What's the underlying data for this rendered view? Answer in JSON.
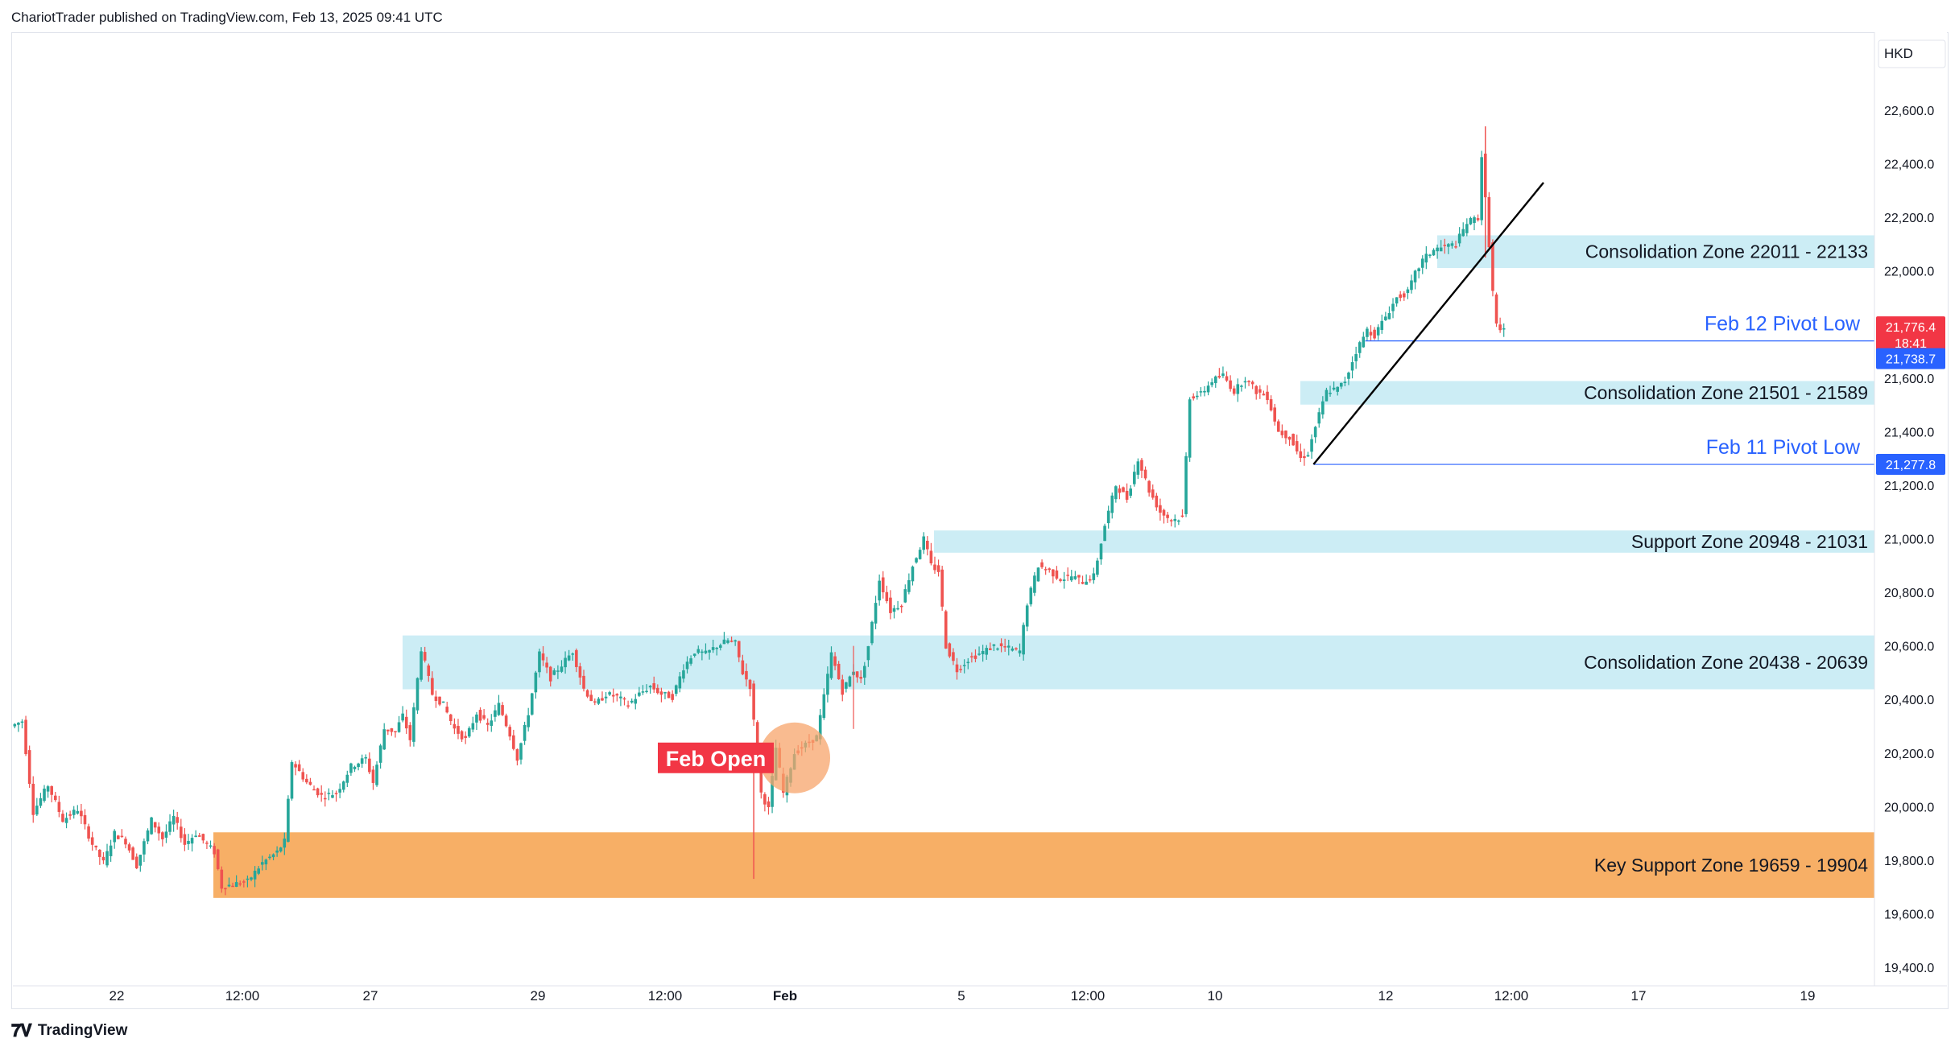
{
  "header": {
    "text": "ChariotTrader published on TradingView.com, Feb 13, 2025 09:41 UTC"
  },
  "footer": {
    "logo_glyph": "𝟕𝐕",
    "brand": "TradingView"
  },
  "colors": {
    "up": "#26a69a",
    "down": "#ef5350",
    "zone_blue": "#ccedf5",
    "zone_orange": "#f7af66",
    "pivot_line": "#2962ff",
    "pivot_text": "#2962ff",
    "price_badge": "#f23645",
    "pivot_badge": "#2962ff",
    "feb_open_bg": "#f23645",
    "circle": "#f7a46b"
  },
  "chart_data": {
    "type": "candlestick",
    "title": "",
    "currency_label": "HKD",
    "ylim": [
      19300,
      22750
    ],
    "y_ticks": [
      "22,600.0",
      "22,400.0",
      "22,200.0",
      "22,000.0",
      "21,800.0",
      "21,600.0",
      "21,400.0",
      "21,200.0",
      "21,000.0",
      "20,800.0",
      "20,600.0",
      "20,400.0",
      "20,200.0",
      "20,000.0",
      "19,800.0",
      "19,600.0",
      "19,400.0"
    ],
    "y_tick_values": [
      22600,
      22400,
      22200,
      22000,
      21800,
      21600,
      21400,
      21200,
      21000,
      20800,
      20600,
      20400,
      20200,
      20000,
      19800,
      19600,
      19400
    ],
    "x_ticks": [
      {
        "label": "22",
        "bold": false
      },
      {
        "label": "12:00",
        "bold": false
      },
      {
        "label": "27",
        "bold": false
      },
      {
        "label": "29",
        "bold": false
      },
      {
        "label": "12:00",
        "bold": false
      },
      {
        "label": "Feb",
        "bold": true
      },
      {
        "label": "5",
        "bold": false
      },
      {
        "label": "12:00",
        "bold": false
      },
      {
        "label": "10",
        "bold": false
      },
      {
        "label": "12",
        "bold": false
      },
      {
        "label": "12:00",
        "bold": false
      },
      {
        "label": "17",
        "bold": false
      },
      {
        "label": "19",
        "bold": false
      }
    ],
    "zones": [
      {
        "label": "Consolidation Zone 22011 - 22133",
        "low": 22011,
        "high": 22133,
        "color": "blue"
      },
      {
        "label": "Consolidation Zone 21501 - 21589",
        "low": 21501,
        "high": 21589,
        "color": "blue"
      },
      {
        "label": "Support Zone 20948 - 21031",
        "low": 20948,
        "high": 21031,
        "color": "blue"
      },
      {
        "label": "Consolidation Zone 20438 - 20639",
        "low": 20438,
        "high": 20639,
        "color": "blue"
      },
      {
        "label": "Key Support Zone 19659 - 19904",
        "low": 19659,
        "high": 19904,
        "color": "orange"
      }
    ],
    "pivots": [
      {
        "label": "Feb 12 Pivot Low",
        "price": 21738.7,
        "badge": "21,738.7"
      },
      {
        "label": "Feb 11 Pivot Low",
        "price": 21277.8,
        "badge": "21,277.8"
      }
    ],
    "last_price": {
      "value": "21,776.4",
      "countdown": "18:41",
      "price": 21776.4
    },
    "annotation": {
      "label": "Feb Open",
      "price": 20200
    },
    "trendline": {
      "from_price": 21277.8,
      "to_price": 22330
    },
    "price_path": [
      [
        0,
        20300
      ],
      [
        3,
        20320
      ],
      [
        6,
        19980
      ],
      [
        10,
        20080
      ],
      [
        14,
        19950
      ],
      [
        18,
        19990
      ],
      [
        22,
        19860
      ],
      [
        25,
        19790
      ],
      [
        28,
        19900
      ],
      [
        31,
        19870
      ],
      [
        34,
        19780
      ],
      [
        38,
        19950
      ],
      [
        41,
        19880
      ],
      [
        44,
        19960
      ],
      [
        47,
        19860
      ],
      [
        50,
        19900
      ],
      [
        53,
        19860
      ],
      [
        55,
        19830
      ],
      [
        57,
        19700
      ],
      [
        60,
        19710
      ],
      [
        64,
        19720
      ],
      [
        68,
        19790
      ],
      [
        72,
        19830
      ],
      [
        74,
        19870
      ],
      [
        76,
        20170
      ],
      [
        80,
        20090
      ],
      [
        84,
        20040
      ],
      [
        88,
        20050
      ],
      [
        92,
        20150
      ],
      [
        96,
        20180
      ],
      [
        98,
        20090
      ],
      [
        101,
        20290
      ],
      [
        104,
        20280
      ],
      [
        106,
        20340
      ],
      [
        108,
        20250
      ],
      [
        111,
        20590
      ],
      [
        114,
        20420
      ],
      [
        117,
        20380
      ],
      [
        120,
        20290
      ],
      [
        123,
        20250
      ],
      [
        126,
        20350
      ],
      [
        129,
        20300
      ],
      [
        132,
        20380
      ],
      [
        135,
        20270
      ],
      [
        137,
        20180
      ],
      [
        140,
        20350
      ],
      [
        143,
        20570
      ],
      [
        146,
        20480
      ],
      [
        149,
        20530
      ],
      [
        152,
        20580
      ],
      [
        155,
        20440
      ],
      [
        158,
        20380
      ],
      [
        161,
        20420
      ],
      [
        164,
        20410
      ],
      [
        167,
        20380
      ],
      [
        170,
        20420
      ],
      [
        173,
        20450
      ],
      [
        176,
        20420
      ],
      [
        179,
        20410
      ],
      [
        182,
        20520
      ],
      [
        185,
        20580
      ],
      [
        188,
        20570
      ],
      [
        191,
        20600
      ],
      [
        194,
        20620
      ],
      [
        196,
        20610
      ],
      [
        198,
        20500
      ],
      [
        200,
        20450
      ],
      [
        203,
        20050
      ],
      [
        205,
        19990
      ],
      [
        207,
        20220
      ],
      [
        209,
        20050
      ],
      [
        212,
        20200
      ],
      [
        215,
        20230
      ],
      [
        218,
        20260
      ],
      [
        220,
        20410
      ],
      [
        222,
        20570
      ],
      [
        225,
        20430
      ],
      [
        228,
        20510
      ],
      [
        230,
        20470
      ],
      [
        232,
        20600
      ],
      [
        235,
        20850
      ],
      [
        238,
        20730
      ],
      [
        241,
        20760
      ],
      [
        244,
        20900
      ],
      [
        247,
        21000
      ],
      [
        249,
        20900
      ],
      [
        251,
        20880
      ],
      [
        253,
        20600
      ],
      [
        256,
        20510
      ],
      [
        259,
        20550
      ],
      [
        262,
        20570
      ],
      [
        266,
        20600
      ],
      [
        270,
        20590
      ],
      [
        273,
        20580
      ],
      [
        275,
        20760
      ],
      [
        278,
        20900
      ],
      [
        281,
        20880
      ],
      [
        284,
        20850
      ],
      [
        287,
        20860
      ],
      [
        290,
        20840
      ],
      [
        293,
        20860
      ],
      [
        296,
        21050
      ],
      [
        299,
        21200
      ],
      [
        302,
        21150
      ],
      [
        305,
        21300
      ],
      [
        308,
        21180
      ],
      [
        311,
        21100
      ],
      [
        314,
        21070
      ],
      [
        317,
        21080
      ],
      [
        319,
        21530
      ],
      [
        322,
        21540
      ],
      [
        325,
        21590
      ],
      [
        328,
        21610
      ],
      [
        331,
        21550
      ],
      [
        334,
        21600
      ],
      [
        337,
        21550
      ],
      [
        340,
        21530
      ],
      [
        343,
        21400
      ],
      [
        346,
        21380
      ],
      [
        349,
        21300
      ],
      [
        351,
        21320
      ],
      [
        353,
        21420
      ],
      [
        356,
        21550
      ],
      [
        359,
        21560
      ],
      [
        361,
        21590
      ],
      [
        364,
        21700
      ],
      [
        367,
        21780
      ],
      [
        369,
        21760
      ],
      [
        372,
        21830
      ],
      [
        375,
        21900
      ],
      [
        378,
        21920
      ],
      [
        380,
        21990
      ],
      [
        382,
        22040
      ],
      [
        385,
        22080
      ],
      [
        388,
        22090
      ],
      [
        391,
        22100
      ],
      [
        394,
        22180
      ],
      [
        397,
        22200
      ],
      [
        398,
        22430
      ],
      [
        400,
        22100
      ],
      [
        401,
        21920
      ],
      [
        402,
        21800
      ],
      [
        403,
        21770
      ],
      [
        404,
        21776
      ]
    ],
    "x_max": 480
  }
}
